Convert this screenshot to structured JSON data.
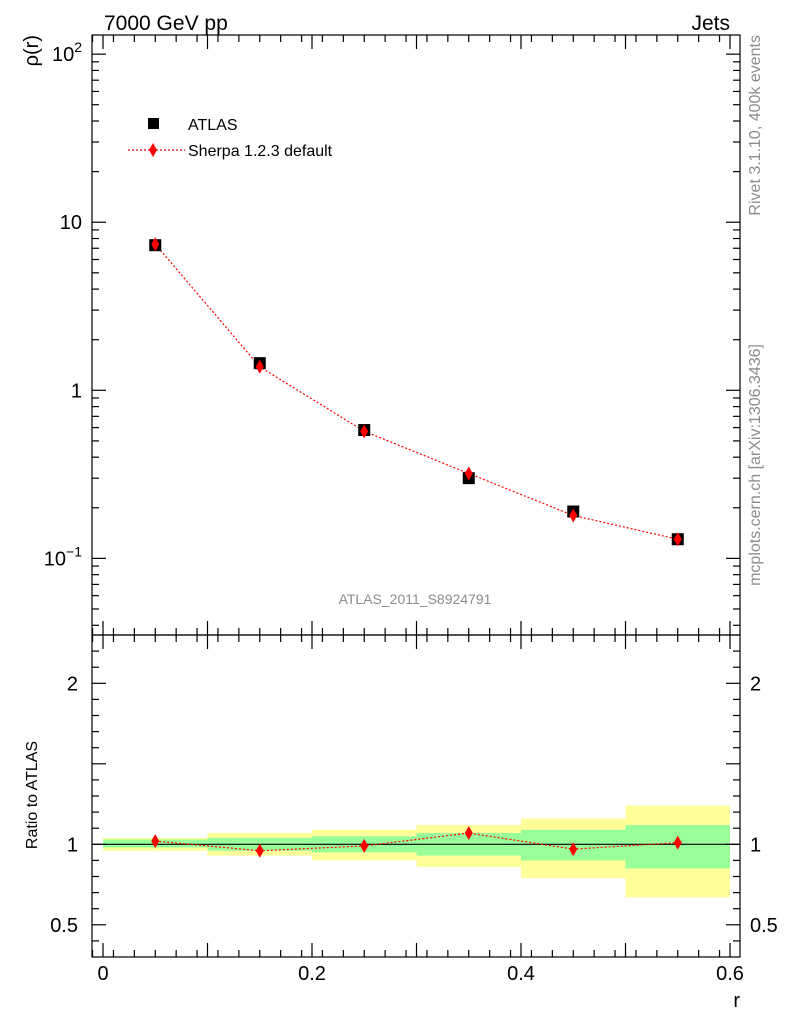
{
  "header": {
    "left": "7000 GeV pp",
    "right": "Jets"
  },
  "side_labels": {
    "rivet": "Rivet 3.1.10,  400k events",
    "source": "mcplots.cern.ch [arXiv:1306.3436]"
  },
  "analysis_id": "ATLAS_2011_S8924791",
  "chart_data": [
    {
      "type": "scatter",
      "ylabel": "ρ(r)",
      "xlabel": "r",
      "yscale": "log",
      "xlim": [
        0,
        0.6
      ],
      "ylim": [
        0.035,
        130
      ],
      "y_tick_labels": [
        "10",
        "1"
      ],
      "y_tick_labels_exp": [
        {
          "base": "10",
          "exp": "2"
        },
        {
          "base": "10",
          "exp": "−1"
        }
      ],
      "legend_position": "top-left",
      "x": [
        0.05,
        0.15,
        0.25,
        0.35,
        0.45,
        0.55
      ],
      "series": [
        {
          "name": "ATLAS",
          "marker": "square",
          "color": "#000000",
          "values": [
            7.3,
            1.45,
            0.58,
            0.3,
            0.19,
            0.13
          ]
        },
        {
          "name": "Sherpa 1.2.3 default",
          "marker": "diamond",
          "line": "dotted",
          "color": "#ff0000",
          "values": [
            7.4,
            1.38,
            0.57,
            0.32,
            0.18,
            0.13
          ]
        }
      ]
    },
    {
      "type": "scatter",
      "ylabel": "Ratio to ATLAS",
      "xlabel": "r",
      "xlim": [
        0,
        0.6
      ],
      "ylim": [
        0.3,
        2.3
      ],
      "x_tick_labels": [
        "0",
        "0.2",
        "0.4",
        "0.6"
      ],
      "y_tick_labels": [
        "2",
        "1",
        "0.5"
      ],
      "bins": [
        [
          0,
          0.1
        ],
        [
          0.1,
          0.2
        ],
        [
          0.2,
          0.3
        ],
        [
          0.3,
          0.4
        ],
        [
          0.4,
          0.5
        ],
        [
          0.5,
          0.6
        ]
      ],
      "band_stat": [
        [
          0.98,
          1.03
        ],
        [
          0.96,
          1.04
        ],
        [
          0.95,
          1.05
        ],
        [
          0.93,
          1.07
        ],
        [
          0.9,
          1.09
        ],
        [
          0.85,
          1.12
        ]
      ],
      "band_total": [
        [
          0.96,
          1.04
        ],
        [
          0.93,
          1.07
        ],
        [
          0.9,
          1.09
        ],
        [
          0.86,
          1.12
        ],
        [
          0.79,
          1.16
        ],
        [
          0.67,
          1.24
        ]
      ],
      "band_stat_color": "#99ff99",
      "band_total_color": "#ffff99",
      "x": [
        0.05,
        0.15,
        0.25,
        0.35,
        0.45,
        0.55
      ],
      "series": [
        {
          "name": "Sherpa 1.2.3 default",
          "marker": "diamond",
          "line": "dotted",
          "color": "#ff0000",
          "values": [
            1.02,
            0.96,
            0.99,
            1.07,
            0.97,
            1.01
          ],
          "errors": [
            0.02,
            0.03,
            0.03,
            0.03,
            0.03,
            0.03
          ]
        }
      ]
    }
  ]
}
